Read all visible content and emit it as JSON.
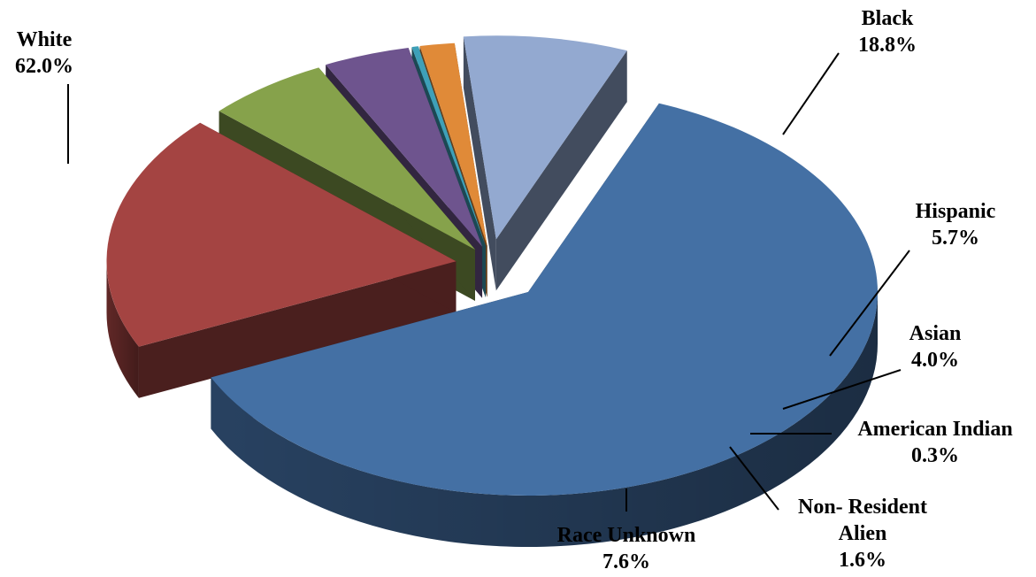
{
  "chart_data": {
    "type": "pie",
    "title": "",
    "categories": [
      "White",
      "Black",
      "Hispanic",
      "Asian",
      "American Indian",
      "Non- Resident Alien",
      "Race Unknown"
    ],
    "values": [
      62.0,
      18.8,
      5.7,
      4.0,
      0.3,
      1.6,
      7.6
    ],
    "value_labels": [
      "62.0%",
      "18.8%",
      "5.7%",
      "4.0%",
      "0.3%",
      "1.6%",
      "7.6%"
    ],
    "colors": [
      "#4470a4",
      "#a44442",
      "#86a24b",
      "#6e548e",
      "#3ea0b8",
      "#e08a38",
      "#93a9d0"
    ],
    "style": "3d-exploded",
    "legend": "none"
  }
}
